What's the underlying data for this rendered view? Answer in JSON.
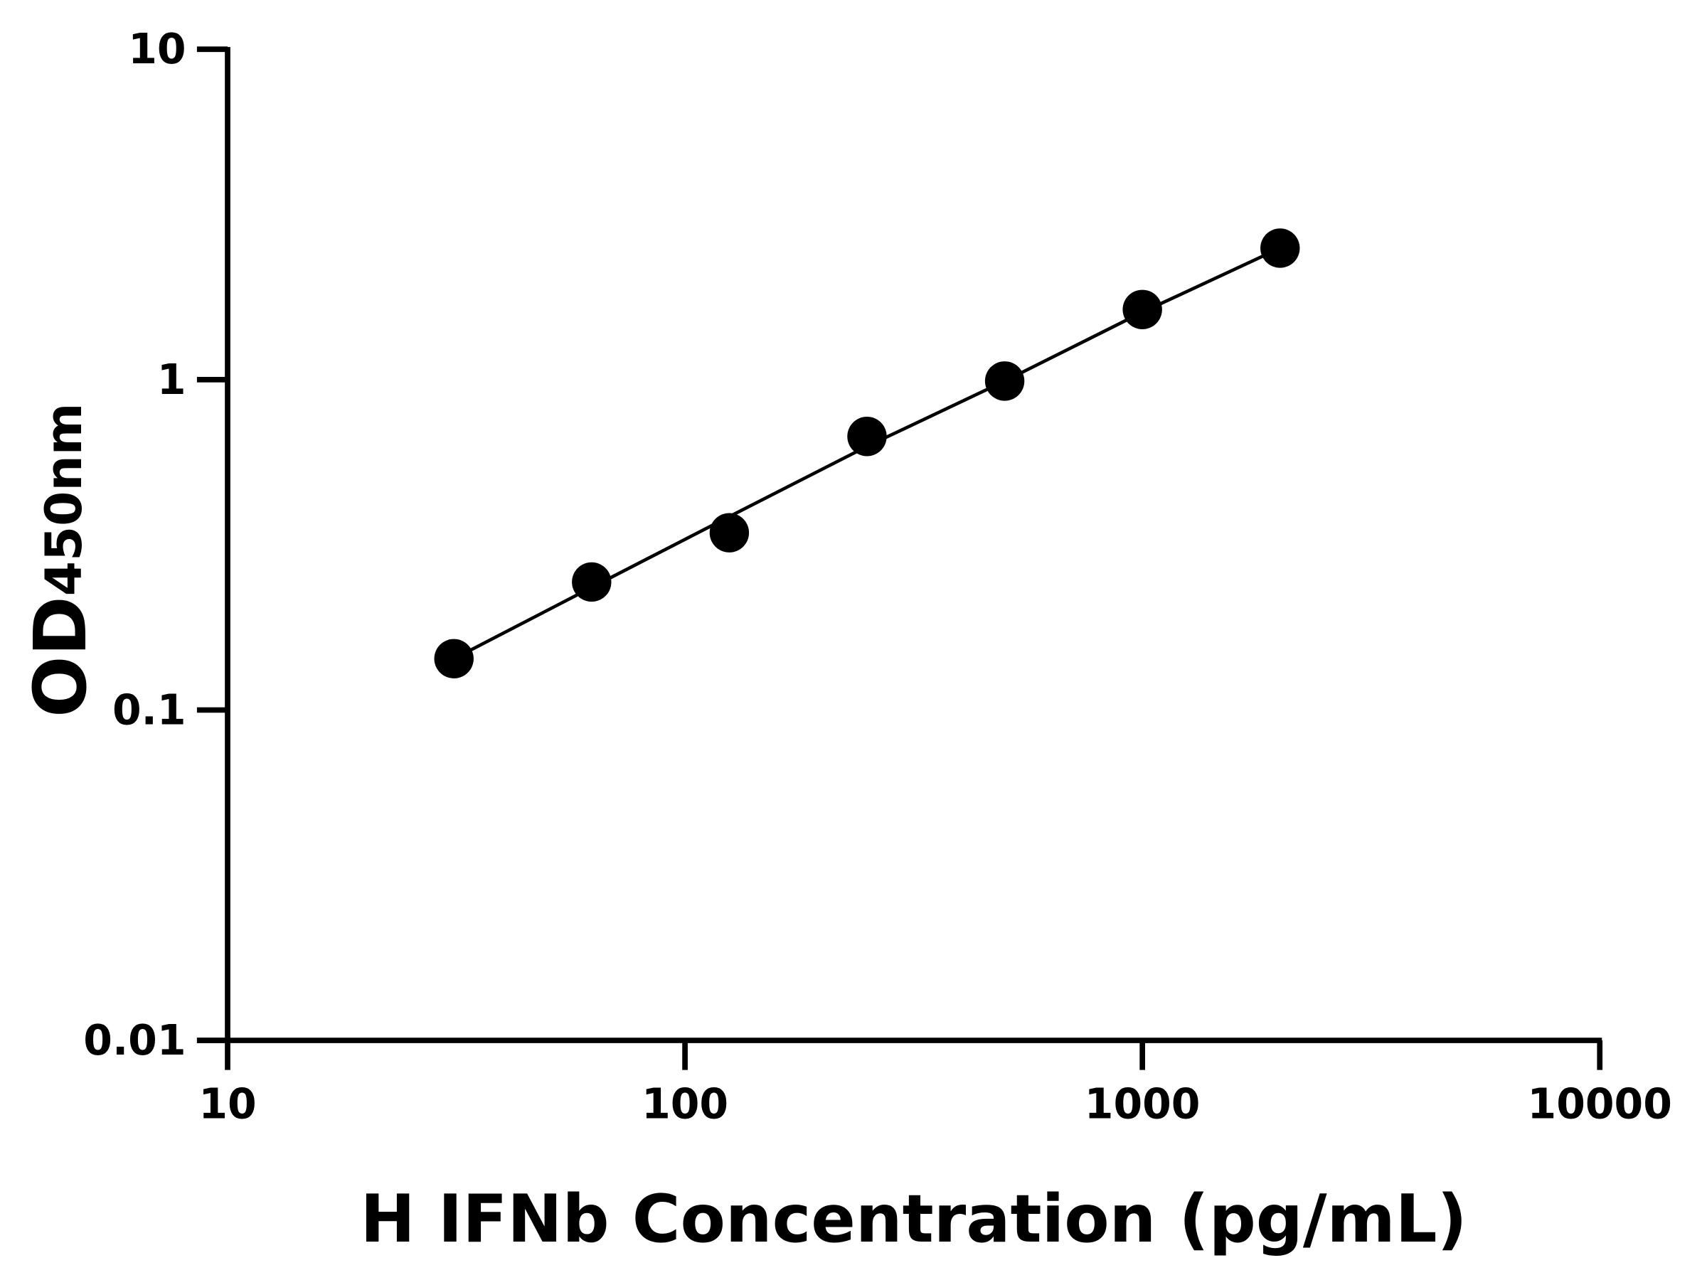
{
  "chart_data": {
    "type": "scatter",
    "title": "",
    "xlabel": "H IFNb Concentration (pg/mL)",
    "ylabel": "OD",
    "ylabel_subscript": "450nm",
    "x_scale": "log",
    "y_scale": "log",
    "xlim": [
      10,
      10000
    ],
    "ylim": [
      0.01,
      10
    ],
    "x_ticks": [
      "10",
      "100",
      "1000",
      "10000"
    ],
    "y_ticks": [
      "0.01",
      "0.1",
      "1",
      "10"
    ],
    "grid": false,
    "legend": "none",
    "series": [
      {
        "x": [
          31.25,
          62.5,
          125,
          250,
          500,
          1000,
          2000
        ],
        "y": [
          0.143,
          0.244,
          0.344,
          0.673,
          0.99,
          1.63,
          2.5
        ],
        "fit": [
          0.143,
          0.235,
          0.385,
          0.628,
          0.99,
          1.6,
          2.5
        ],
        "color": "#000000"
      }
    ]
  }
}
